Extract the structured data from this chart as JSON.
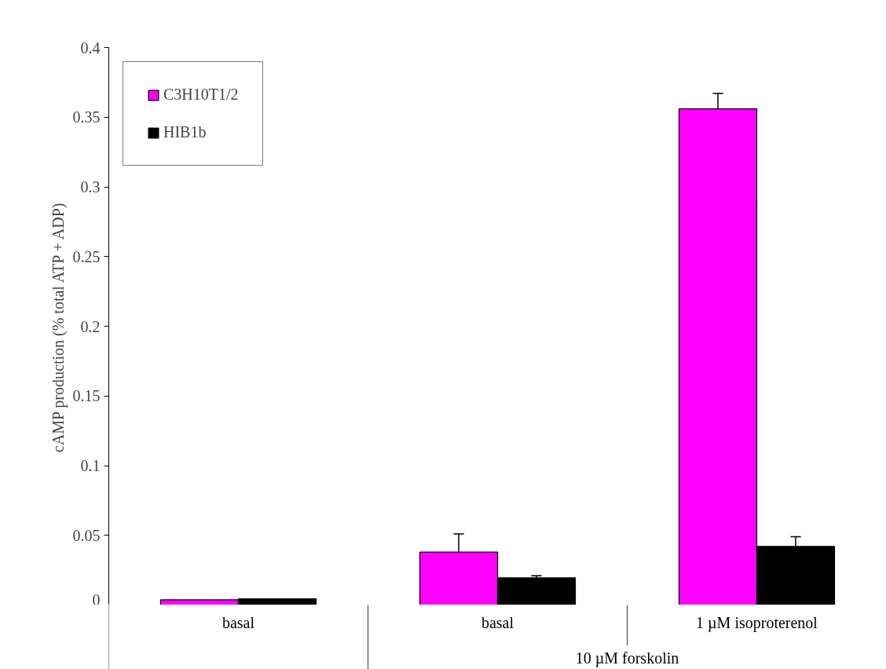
{
  "chart_data": {
    "type": "bar",
    "ylabel": "cAMP production (% total ATP + ADP)",
    "categories": [
      "basal",
      "basal",
      "1 µM isoproterenol"
    ],
    "series": [
      {
        "name": "C3H10T1/2",
        "color": "#ff00ff",
        "values": [
          0.0037,
          0.038,
          0.356
        ],
        "errors": [
          null,
          0.013,
          0.011
        ]
      },
      {
        "name": "HIB1b",
        "color": "#000000",
        "values": [
          0.0044,
          0.0195,
          0.042
        ],
        "errors": [
          null,
          0.0015,
          0.007
        ]
      }
    ],
    "annotations": [
      "10 µM forskolin"
    ],
    "ylim": [
      0,
      0.4
    ],
    "yticks": [
      0,
      0.05,
      0.1,
      0.15,
      0.2,
      0.25,
      0.3,
      0.35,
      0.4
    ],
    "grid": false,
    "legend": "top left"
  }
}
